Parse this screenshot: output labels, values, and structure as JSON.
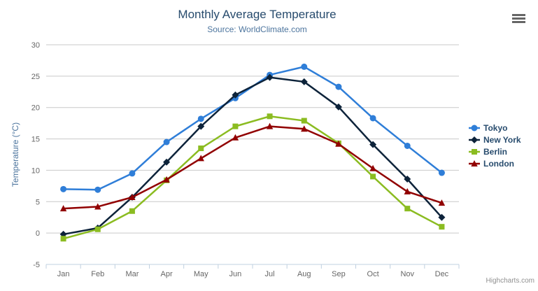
{
  "chart": {
    "title": "Monthly Average Temperature",
    "subtitle": "Source: WorldClimate.com",
    "credits": "Highcharts.com"
  },
  "chart_data": {
    "type": "line",
    "title": "Monthly Average Temperature",
    "subtitle": "Source: WorldClimate.com",
    "xlabel": "",
    "ylabel": "Temperature (°C)",
    "categories": [
      "Jan",
      "Feb",
      "Mar",
      "Apr",
      "May",
      "Jun",
      "Jul",
      "Aug",
      "Sep",
      "Oct",
      "Nov",
      "Dec"
    ],
    "series": [
      {
        "name": "Tokyo",
        "color": "#2f7ed8",
        "marker": "circle",
        "values": [
          7.0,
          6.9,
          9.5,
          14.5,
          18.2,
          21.5,
          25.2,
          26.5,
          23.3,
          18.3,
          13.9,
          9.6
        ]
      },
      {
        "name": "New York",
        "color": "#0d233a",
        "marker": "diamond",
        "values": [
          -0.2,
          0.8,
          5.7,
          11.3,
          17.0,
          22.0,
          24.8,
          24.1,
          20.1,
          14.1,
          8.6,
          2.5
        ]
      },
      {
        "name": "Berlin",
        "color": "#8bbc21",
        "marker": "square",
        "values": [
          -0.9,
          0.6,
          3.5,
          8.4,
          13.5,
          17.0,
          18.6,
          17.9,
          14.3,
          9.0,
          3.9,
          1.0
        ]
      },
      {
        "name": "London",
        "color": "#910000",
        "marker": "triangle",
        "values": [
          3.9,
          4.2,
          5.7,
          8.5,
          11.9,
          15.2,
          17.0,
          16.6,
          14.2,
          10.3,
          6.6,
          4.8
        ]
      }
    ],
    "ylim": [
      -5,
      30
    ],
    "ytick": 5,
    "grid": true,
    "legend_position": "right",
    "colors": {
      "grid": "#c9c9c9",
      "axis_line": "#c0d0e0",
      "axis_label": "#666666",
      "title": "#274b6d",
      "subtitle": "#4d759e",
      "legend_text": "#274b6d",
      "credits_text": "#909090"
    }
  }
}
